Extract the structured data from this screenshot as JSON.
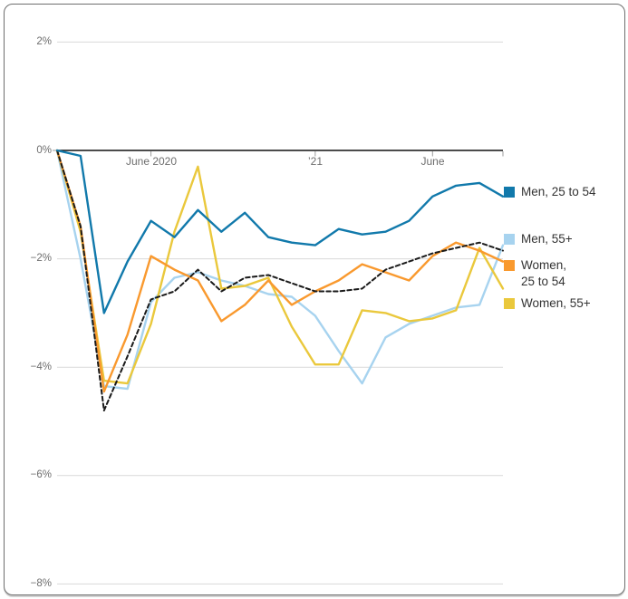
{
  "colors": {
    "men_25_54": "#1179ab",
    "men_55": "#a7d3ef",
    "women_25_54": "#f9992e",
    "women_55": "#eac83c",
    "dashed_line": "#1a1a1a",
    "gridline": "#d9d9d9",
    "zero_axis": "#111111",
    "tick": "#9b9b9b",
    "axis_text": "#6e6e6e",
    "legend_text": "#333333"
  },
  "y_axis": {
    "ticks": [
      {
        "label": "2%",
        "value": 2
      },
      {
        "label": "0%",
        "value": 0
      },
      {
        "label": "−2%",
        "value": -2
      },
      {
        "label": "−4%",
        "value": -4
      },
      {
        "label": "−6%",
        "value": -6
      },
      {
        "label": "−8%",
        "value": -8
      }
    ]
  },
  "x_axis": {
    "labels": [
      {
        "label": "June 2020",
        "month_index": 4
      },
      {
        "label": "’21",
        "month_index": 11
      },
      {
        "label": "June",
        "month_index": 16
      }
    ],
    "tick_month_indices": [
      4,
      11,
      16,
      19
    ]
  },
  "legend": {
    "items": [
      {
        "label": "Men, 25 to 54",
        "color": "#1179ab"
      },
      {
        "label": "Men, 55+",
        "color": "#a7d3ef"
      },
      {
        "label": "Women, 25 to 54",
        "color": "#f9992e"
      },
      {
        "label": "Women, 55+",
        "color": "#eac83c"
      }
    ]
  },
  "chart_data": {
    "type": "line",
    "x": [
      "Feb 2020",
      "Mar 2020",
      "Apr 2020",
      "May 2020",
      "Jun 2020",
      "Jul 2020",
      "Aug 2020",
      "Sep 2020",
      "Oct 2020",
      "Nov 2020",
      "Dec 2020",
      "Jan 2021",
      "Feb 2021",
      "Mar 2021",
      "Apr 2021",
      "May 2021",
      "Jun 2021",
      "Jul 2021",
      "Aug 2021",
      "Sep 2021"
    ],
    "unit": "percent change, percentage points",
    "ylim": [
      -8,
      2
    ],
    "gridline_values": [
      2,
      0,
      -2,
      -4,
      -6,
      -8
    ],
    "grid": true,
    "legend_position": "right",
    "series": [
      {
        "name": "Men, 55+",
        "color": "#a7d3ef",
        "dashed": false,
        "values": [
          0,
          -2.0,
          -4.35,
          -4.4,
          -2.8,
          -2.35,
          -2.25,
          -2.4,
          -2.5,
          -2.65,
          -2.7,
          -3.05,
          -3.7,
          -4.3,
          -3.45,
          -3.2,
          -3.05,
          -2.9,
          -2.85,
          -1.75
        ]
      },
      {
        "name": "Women, 55+",
        "color": "#eac83c",
        "dashed": false,
        "values": [
          0,
          -1.5,
          -4.25,
          -4.3,
          -3.2,
          -1.5,
          -0.3,
          -2.55,
          -2.5,
          -2.35,
          -3.25,
          -3.95,
          -3.95,
          -2.95,
          -3.0,
          -3.15,
          -3.1,
          -2.95,
          -1.8,
          -2.55
        ]
      },
      {
        "name": "Women, 25 to 54",
        "color": "#f9992e",
        "dashed": false,
        "values": [
          0,
          -1.4,
          -4.45,
          -3.4,
          -1.95,
          -2.2,
          -2.4,
          -3.15,
          -2.85,
          -2.4,
          -2.85,
          -2.6,
          -2.4,
          -2.1,
          -2.25,
          -2.4,
          -1.95,
          -1.7,
          -1.85,
          -2.05
        ]
      },
      {
        "name": "unlabeled dashed series",
        "color": "#1a1a1a",
        "dashed": true,
        "values": [
          0,
          -1.4,
          -4.8,
          -3.8,
          -2.75,
          -2.6,
          -2.2,
          -2.6,
          -2.35,
          -2.3,
          -2.45,
          -2.6,
          -2.6,
          -2.55,
          -2.2,
          -2.05,
          -1.9,
          -1.8,
          -1.7,
          -1.85
        ]
      },
      {
        "name": "Men, 25 to 54",
        "color": "#1179ab",
        "dashed": false,
        "values": [
          0,
          -0.1,
          -3.0,
          -2.05,
          -1.3,
          -1.6,
          -1.1,
          -1.5,
          -1.15,
          -1.6,
          -1.7,
          -1.75,
          -1.45,
          -1.55,
          -1.5,
          -1.3,
          -0.85,
          -0.65,
          -0.6,
          -0.85
        ]
      }
    ]
  }
}
